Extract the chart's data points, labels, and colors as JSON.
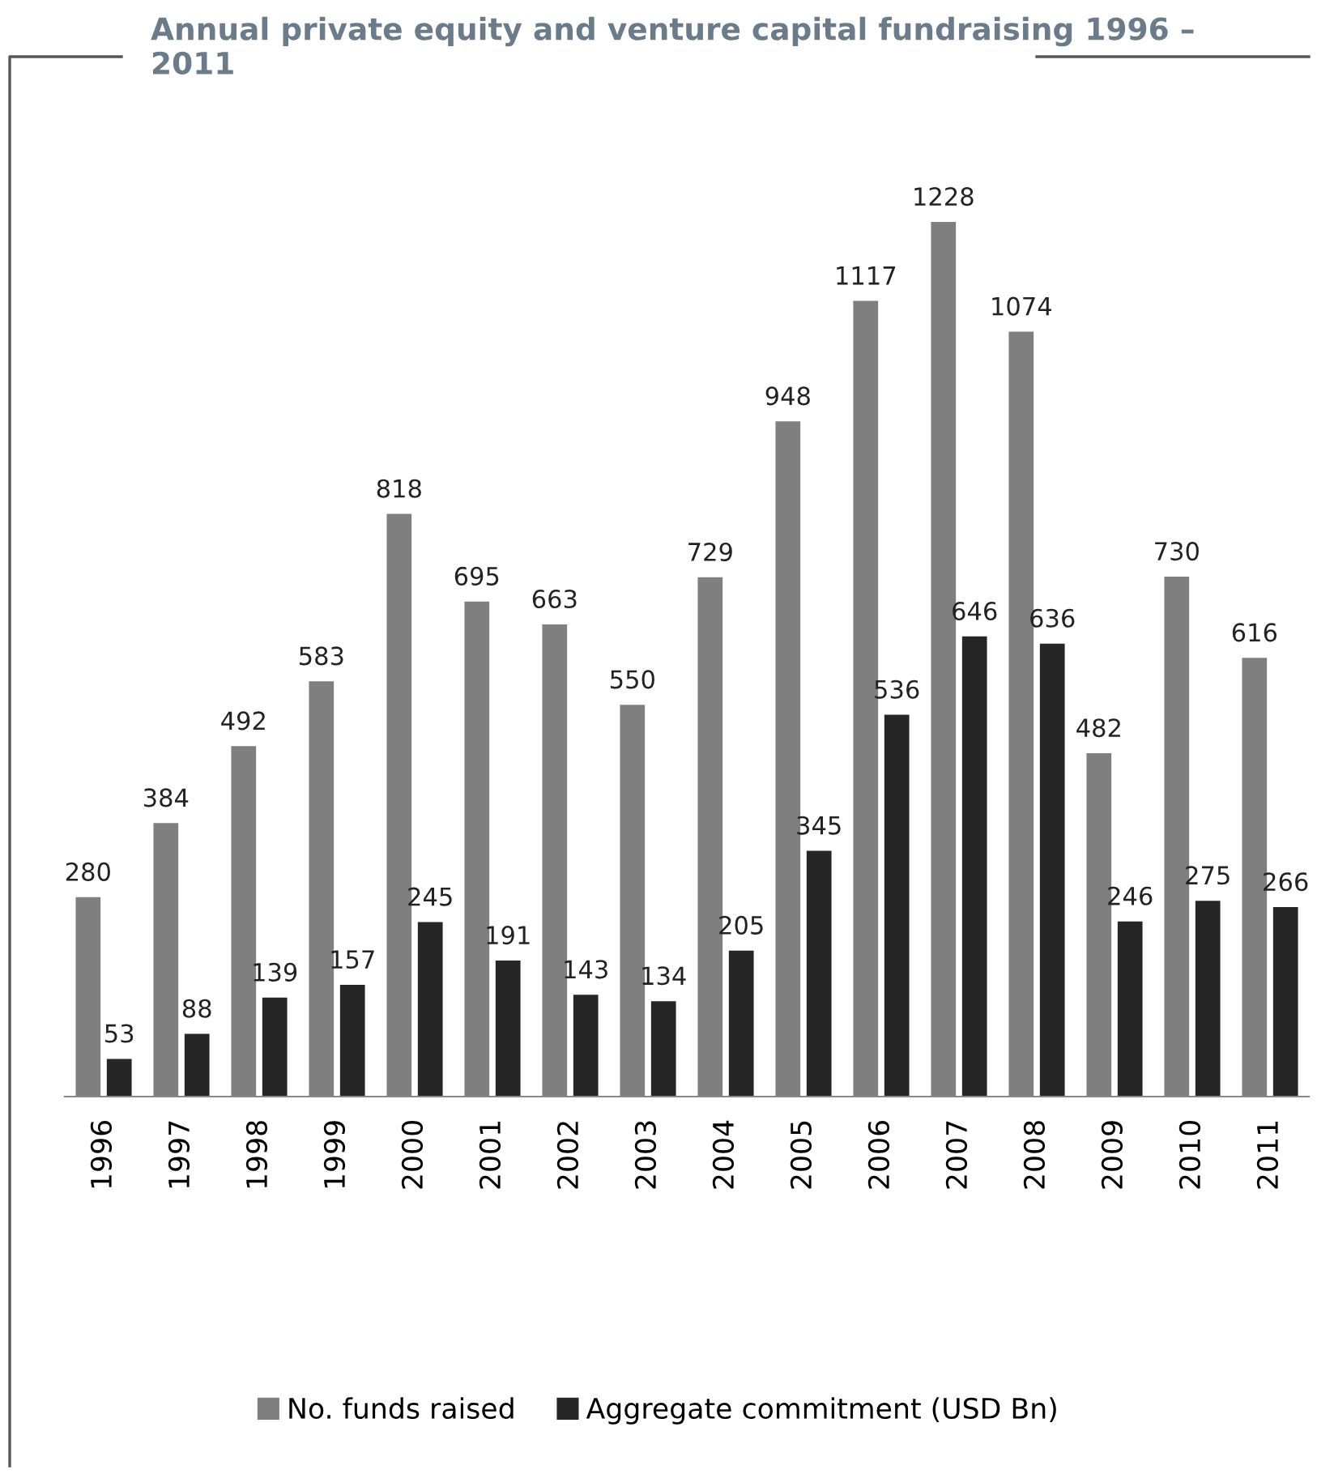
{
  "chart_data": {
    "type": "bar",
    "title": "Annual private equity and venture capital fundraising 1996 – 2011",
    "categories": [
      "1996",
      "1997",
      "1998",
      "1999",
      "2000",
      "2001",
      "2002",
      "2003",
      "2004",
      "2005",
      "2006",
      "2007",
      "2008",
      "2009",
      "2010",
      "2011"
    ],
    "series": [
      {
        "name": "No. funds raised",
        "color": "#7f7f7f",
        "values": [
          280,
          384,
          492,
          583,
          818,
          695,
          663,
          550,
          729,
          948,
          1117,
          1228,
          1074,
          482,
          730,
          616
        ]
      },
      {
        "name": "Aggregate commitment (USD Bn)",
        "color": "#262626",
        "values": [
          53,
          88,
          139,
          157,
          245,
          191,
          143,
          134,
          205,
          345,
          536,
          646,
          636,
          246,
          275,
          266
        ]
      }
    ],
    "data_labels": true,
    "legend": "bottom",
    "grid": false,
    "tick_labels": "x"
  }
}
